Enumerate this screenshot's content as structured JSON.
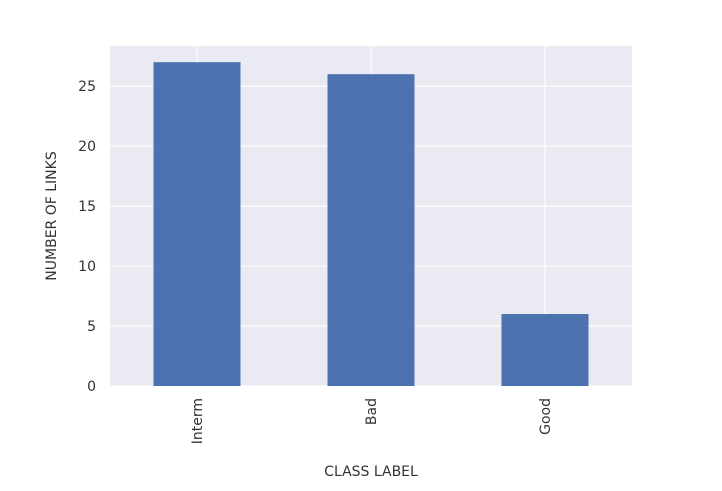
{
  "chart_data": {
    "type": "bar",
    "categories": [
      "Interm",
      "Bad",
      "Good"
    ],
    "values": [
      27,
      26,
      6
    ],
    "xlabel": "CLASS LABEL",
    "ylabel": "NUMBER OF LINKS",
    "ylim": [
      0,
      28.35
    ],
    "yticks": [
      0,
      5,
      10,
      15,
      20,
      25
    ],
    "grid": true,
    "legend": "none",
    "colors": {
      "bar": "#4c72b0",
      "plot_background": "#eaeaf2",
      "grid": "#ffffff",
      "text": "#333333"
    }
  }
}
